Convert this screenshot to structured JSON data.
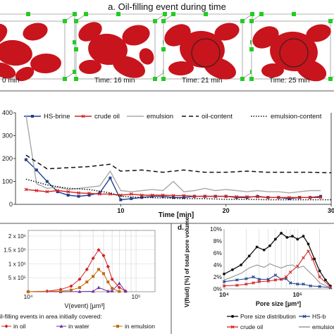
{
  "panel_a": {
    "title": "a. Oil-filling event during time",
    "frames": [
      {
        "time_label": "0 min"
      },
      {
        "time_label": "Time: 16 min"
      },
      {
        "time_label": "Time: 21 min"
      },
      {
        "time_label": "Time: 25 min"
      }
    ],
    "colors": {
      "oil": "#c8141c",
      "marker": "#22cc22",
      "box": "#9a9a9a"
    }
  },
  "chart_data": [
    {
      "id": "b",
      "type": "line",
      "xlabel": "Time [min]",
      "xlim": [
        0,
        30
      ],
      "ylim": [
        0,
        400
      ],
      "xticks": [
        10,
        20,
        30
      ],
      "xticklabels": [
        "10",
        "20",
        "30"
      ],
      "yticks": [
        0,
        100,
        200,
        300,
        400
      ],
      "yticklabels": [
        "0",
        "100",
        "200",
        "300",
        "400"
      ],
      "legend_placement": "top",
      "series": [
        {
          "name": "HS-brine",
          "color": "#1f3f8f",
          "style": "solid",
          "marker": "square",
          "x": [
            1,
            2,
            3,
            4,
            5,
            6,
            7,
            8,
            9,
            10,
            11,
            12,
            13,
            14,
            15,
            16,
            17,
            18,
            19,
            20,
            21,
            22,
            23,
            24,
            25,
            26,
            27,
            28,
            29
          ],
          "y": [
            195,
            150,
            100,
            55,
            40,
            35,
            40,
            50,
            115,
            20,
            25,
            30,
            35,
            35,
            30,
            30,
            35,
            35,
            35,
            35,
            30,
            30,
            35,
            30,
            30,
            25,
            30,
            30,
            35
          ]
        },
        {
          "name": "crude oil",
          "color": "#d42020",
          "style": "solid",
          "marker": "x",
          "x": [
            1,
            2,
            3,
            4,
            5,
            6,
            7,
            8,
            9,
            10,
            11,
            12,
            13,
            14,
            15,
            16,
            17,
            18,
            19,
            20,
            21,
            22,
            23,
            24,
            25,
            26,
            27,
            28,
            29
          ],
          "y": [
            65,
            60,
            55,
            60,
            55,
            50,
            48,
            45,
            45,
            40,
            45,
            40,
            40,
            40,
            38,
            38,
            35,
            35,
            35,
            35,
            33,
            33,
            33,
            30,
            30,
            30,
            30,
            30,
            30
          ]
        },
        {
          "name": "emulsion",
          "color": "#a8a8a8",
          "style": "solid",
          "marker": "none",
          "x": [
            1,
            2,
            3,
            4,
            5,
            6,
            7,
            8,
            9,
            10,
            11,
            12,
            13,
            14,
            15,
            16,
            17,
            18,
            19,
            20,
            21,
            22,
            23,
            24,
            25,
            26,
            27,
            28,
            29
          ],
          "y": [
            390,
            90,
            70,
            75,
            65,
            70,
            75,
            80,
            145,
            60,
            55,
            60,
            65,
            60,
            100,
            55,
            60,
            70,
            60,
            65,
            60,
            55,
            60,
            55,
            55,
            50,
            55,
            60,
            60
          ]
        },
        {
          "name": "oil-content",
          "color": "#111111",
          "style": "dashed",
          "marker": "none",
          "x": [
            1,
            3,
            5,
            7,
            9,
            10,
            12,
            14,
            16,
            18,
            20,
            22,
            24,
            26,
            28,
            30
          ],
          "y": [
            215,
            155,
            160,
            165,
            175,
            145,
            150,
            140,
            150,
            140,
            140,
            145,
            140,
            140,
            140,
            138
          ]
        },
        {
          "name": "emulsion-content",
          "color": "#111111",
          "style": "dotted",
          "marker": "none",
          "x": [
            1,
            3,
            5,
            7,
            9,
            10,
            12,
            14,
            16,
            18,
            20,
            22,
            24,
            26,
            28,
            30
          ],
          "y": [
            110,
            85,
            70,
            65,
            50,
            35,
            30,
            28,
            25,
            25,
            22,
            22,
            20,
            20,
            20,
            20
          ]
        }
      ]
    },
    {
      "id": "c",
      "type": "line",
      "xlabel": "V(event) [µm³]",
      "xscale": "log",
      "xlim": [
        10000,
        150000
      ],
      "ylim": [
        0,
        2200000
      ],
      "xticks": [
        10000,
        100000
      ],
      "xticklabels": [
        "10⁴",
        "10⁵"
      ],
      "yticks": [
        500000,
        1000000,
        1500000,
        2000000
      ],
      "yticklabels": [
        "5 x 10⁵",
        "1 x 10⁶",
        "1.5 x 10⁶",
        "2 x 10⁶"
      ],
      "ylabel_partial": "",
      "legend_title": "il-filling events in area initially covered:",
      "series": [
        {
          "name": "in oil",
          "color": "#d42020",
          "marker": "diamond",
          "x": [
            10000,
            15000,
            20000,
            25000,
            30000,
            35000,
            40000,
            45000,
            50000,
            55000,
            60000,
            70000,
            80000
          ],
          "y": [
            0,
            20000,
            80000,
            200000,
            450000,
            800000,
            1200000,
            1500000,
            1300000,
            900000,
            450000,
            150000,
            20000
          ]
        },
        {
          "name": "in water",
          "color": "#7030a0",
          "marker": "triangle",
          "x": [
            10000,
            20000,
            30000,
            40000,
            45000,
            55000,
            60000,
            70000,
            80000
          ],
          "y": [
            0,
            0,
            5000,
            15000,
            150000,
            20000,
            30000,
            300000,
            20000
          ]
        },
        {
          "name": "in emulsion",
          "color": "#c46a10",
          "marker": "square",
          "x": [
            10000,
            20000,
            25000,
            30000,
            35000,
            40000,
            45000,
            50000,
            55000,
            60000,
            70000
          ],
          "y": [
            0,
            20000,
            60000,
            150000,
            350000,
            550000,
            800000,
            650000,
            350000,
            120000,
            10000
          ]
        }
      ]
    },
    {
      "id": "d",
      "type": "line",
      "panel_label": "d.",
      "xlabel": "Pore size [µm³]",
      "ylabel": "V(fluid) [%] of total pore volume",
      "xscale": "log",
      "xlim": [
        10000,
        300000
      ],
      "ylim": [
        0,
        10
      ],
      "xticks": [
        10000,
        100000
      ],
      "xticklabels": [
        "10⁴",
        "10⁵"
      ],
      "yticks": [
        0,
        2,
        4,
        6,
        8,
        10
      ],
      "yticklabels": [
        "0%",
        "2%",
        "4%",
        "6%",
        "8%",
        "10%"
      ],
      "series": [
        {
          "name": "Pore size distribution",
          "color": "#111111",
          "marker": "circle",
          "x": [
            10000,
            13000,
            17000,
            22000,
            28000,
            35000,
            42000,
            50000,
            60000,
            72000,
            85000,
            100000,
            120000,
            140000,
            170000,
            200000,
            240000,
            280000
          ],
          "y": [
            2.5,
            3.2,
            4.0,
            5.5,
            7.0,
            6.5,
            7.2,
            8.3,
            9.3,
            8.6,
            8.8,
            8.3,
            8.8,
            7.5,
            5.0,
            3.0,
            1.5,
            0.5
          ]
        },
        {
          "name": "HS-b",
          "color": "#1f3f8f",
          "marker": "x",
          "x": [
            10000,
            15000,
            20000,
            25000,
            30000,
            40000,
            50000,
            60000,
            70000,
            80000,
            100000,
            120000,
            150000,
            200000,
            280000
          ],
          "y": [
            1.2,
            1.5,
            1.7,
            2.0,
            1.6,
            1.6,
            2.3,
            1.6,
            1.7,
            1.0,
            0.8,
            0.8,
            0.5,
            0.4,
            0.2
          ]
        },
        {
          "name": "crude oil",
          "color": "#d42020",
          "marker": "x",
          "x": [
            10000,
            15000,
            20000,
            25000,
            30000,
            40000,
            50000,
            60000,
            70000,
            80000,
            100000,
            120000,
            140000,
            160000,
            200000,
            280000
          ],
          "y": [
            0.5,
            0.6,
            0.8,
            1.0,
            1.2,
            1.3,
            1.5,
            1.6,
            2.0,
            2.8,
            3.8,
            5.2,
            6.3,
            5.0,
            2.0,
            0.3
          ]
        },
        {
          "name": "emulsion",
          "color": "#888888",
          "marker": "none",
          "x": [
            10000,
            13000,
            17000,
            22000,
            28000,
            35000,
            42000,
            50000,
            60000,
            72000,
            85000,
            100000,
            120000,
            140000,
            170000,
            200000,
            280000
          ],
          "y": [
            1.5,
            2.0,
            2.6,
            3.5,
            4.0,
            3.6,
            4.2,
            3.8,
            3.5,
            3.9,
            4.0,
            3.5,
            3.8,
            3.0,
            2.0,
            1.0,
            0.2
          ]
        }
      ]
    }
  ]
}
